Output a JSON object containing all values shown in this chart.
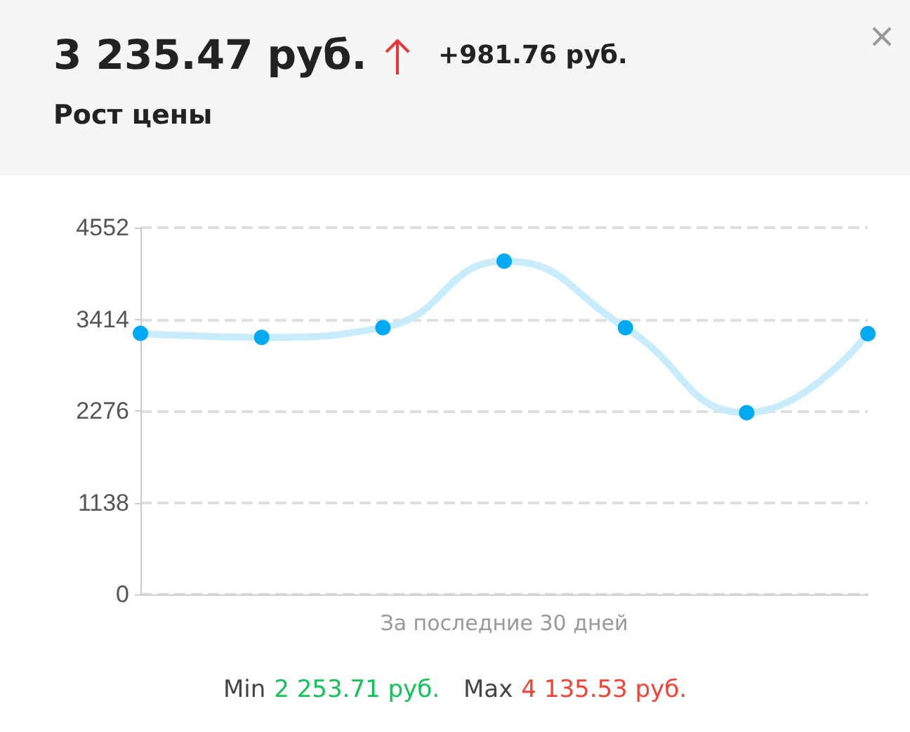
{
  "chart_data": {
    "type": "line",
    "title": "3 235.47 руб.",
    "subtitle": "Рост цены",
    "xlabel": "За последние 30 дней",
    "annotations": [
      "+981.76 руб.",
      "Min",
      "2 253.71 руб.",
      "Max",
      "4 135.53 руб."
    ],
    "categories": [
      null,
      null,
      null,
      null,
      null,
      null,
      null
    ],
    "series": [
      {
        "color": "#00aaf2",
        "values": [
          3240,
          3190,
          3310,
          4135.53,
          3310,
          2253.71,
          3235.47
        ]
      }
    ],
    "ylim": [
      0,
      4552
    ],
    "yticks": [
      0,
      1138,
      2276,
      3414,
      4552
    ],
    "grid": "y",
    "marker": "circle",
    "line_style": "solid"
  }
}
